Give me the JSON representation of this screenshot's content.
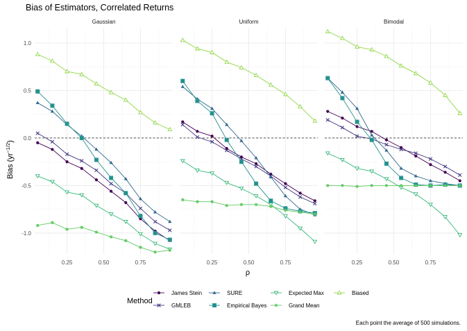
{
  "chart_data": {
    "type": "line",
    "title": "Bias of Estimators, Correlated Returns",
    "xlabel": "ρ",
    "ylabel": "Bias (yr",
    "ylabel_exponent": "−1/2",
    "ylabel_close": ")",
    "xticks": [
      "0.25",
      "0.50",
      "0.75"
    ],
    "yticks": [
      "1.0",
      "0.5",
      "0.0",
      "-0.5",
      "-1.0"
    ],
    "xlim": [
      0.03,
      0.97
    ],
    "ylim": [
      -1.22,
      1.16
    ],
    "reference_line": 0,
    "grid": true,
    "legend": {
      "title": "Method",
      "position": "bottom"
    },
    "caption": "Each point the average of 500 simulations.",
    "x": [
      0.05,
      0.15,
      0.25,
      0.35,
      0.45,
      0.55,
      0.65,
      0.75,
      0.85,
      0.95
    ],
    "series_meta": [
      {
        "name": "James Stein",
        "color": "#440154",
        "shape": "circle"
      },
      {
        "name": "GMLEB",
        "color": "#443a83",
        "shape": "x"
      },
      {
        "name": "SURE",
        "color": "#31688e",
        "shape": "triangle"
      },
      {
        "name": "Empirical Bayes",
        "color": "#21908d",
        "shape": "square"
      },
      {
        "name": "Expected Max",
        "color": "#35b779",
        "shape": "triangle-down"
      },
      {
        "name": "Grand Mean",
        "color": "#5ec962",
        "shape": "asterisk"
      },
      {
        "name": "Biased",
        "color": "#8fd744",
        "shape": "triangle-open"
      }
    ],
    "panels": [
      {
        "name": "Gaussian",
        "series": [
          {
            "name": "James Stein",
            "values": [
              -0.05,
              -0.12,
              -0.25,
              -0.32,
              -0.44,
              -0.56,
              -0.68,
              -0.85,
              -0.98,
              -1.08
            ]
          },
          {
            "name": "GMLEB",
            "values": [
              0.05,
              -0.04,
              -0.17,
              -0.24,
              -0.34,
              -0.48,
              -0.58,
              -0.74,
              -0.88,
              -0.97
            ]
          },
          {
            "name": "SURE",
            "values": [
              0.37,
              0.28,
              0.14,
              0.02,
              -0.12,
              -0.26,
              -0.43,
              -0.64,
              -0.78,
              -0.88
            ]
          },
          {
            "name": "Empirical Bayes",
            "values": [
              0.49,
              0.34,
              0.15,
              0.0,
              -0.23,
              -0.42,
              -0.58,
              -0.82,
              -1.0,
              -1.07
            ]
          },
          {
            "name": "Expected Max",
            "values": [
              -0.4,
              -0.46,
              -0.57,
              -0.6,
              -0.71,
              -0.8,
              -0.88,
              -1.01,
              -1.11,
              -1.17
            ]
          },
          {
            "name": "Grand Mean",
            "values": [
              -0.92,
              -0.89,
              -0.96,
              -0.94,
              -0.99,
              -1.04,
              -1.08,
              -1.15,
              -1.2,
              -1.18
            ]
          },
          {
            "name": "Biased",
            "values": [
              0.88,
              0.81,
              0.7,
              0.67,
              0.57,
              0.48,
              0.4,
              0.27,
              0.16,
              0.09
            ]
          }
        ]
      },
      {
        "name": "Uniform",
        "series": [
          {
            "name": "James Stein",
            "values": [
              0.17,
              0.07,
              0.02,
              -0.11,
              -0.2,
              -0.27,
              -0.38,
              -0.48,
              -0.58,
              -0.66
            ]
          },
          {
            "name": "GMLEB",
            "values": [
              0.14,
              0.01,
              -0.04,
              -0.13,
              -0.22,
              -0.3,
              -0.4,
              -0.52,
              -0.62,
              -0.69
            ]
          },
          {
            "name": "SURE",
            "values": [
              0.54,
              0.41,
              0.31,
              0.14,
              -0.03,
              -0.21,
              -0.41,
              -0.61,
              -0.75,
              -0.81
            ]
          },
          {
            "name": "Empirical Bayes",
            "values": [
              0.6,
              0.39,
              0.26,
              -0.02,
              -0.25,
              -0.48,
              -0.66,
              -0.74,
              -0.77,
              -0.79
            ]
          },
          {
            "name": "Expected Max",
            "values": [
              -0.24,
              -0.34,
              -0.37,
              -0.47,
              -0.53,
              -0.61,
              -0.7,
              -0.82,
              -0.95,
              -1.09
            ]
          },
          {
            "name": "Grand Mean",
            "values": [
              -0.65,
              -0.67,
              -0.67,
              -0.71,
              -0.7,
              -0.7,
              -0.72,
              -0.76,
              -0.78,
              -0.8
            ]
          },
          {
            "name": "Biased",
            "values": [
              1.03,
              0.94,
              0.9,
              0.8,
              0.74,
              0.66,
              0.56,
              0.46,
              0.33,
              0.18
            ]
          }
        ]
      },
      {
        "name": "Bimodal",
        "series": [
          {
            "name": "James Stein",
            "values": [
              0.28,
              0.21,
              0.12,
              0.07,
              -0.02,
              -0.1,
              -0.19,
              -0.28,
              -0.36,
              -0.45
            ]
          },
          {
            "name": "GMLEB",
            "values": [
              0.19,
              0.11,
              0.02,
              -0.01,
              -0.07,
              -0.12,
              -0.16,
              -0.22,
              -0.3,
              -0.39
            ]
          },
          {
            "name": "SURE",
            "values": [
              0.63,
              0.48,
              0.31,
              0.03,
              -0.13,
              -0.32,
              -0.4,
              -0.45,
              -0.48,
              -0.5
            ]
          },
          {
            "name": "Empirical Bayes",
            "values": [
              0.63,
              0.42,
              0.17,
              -0.02,
              -0.27,
              -0.42,
              -0.49,
              -0.5,
              -0.49,
              -0.5
            ]
          },
          {
            "name": "Expected Max",
            "values": [
              -0.16,
              -0.23,
              -0.32,
              -0.35,
              -0.43,
              -0.52,
              -0.59,
              -0.7,
              -0.83,
              -1.02
            ]
          },
          {
            "name": "Grand Mean",
            "values": [
              -0.5,
              -0.5,
              -0.51,
              -0.5,
              -0.5,
              -0.5,
              -0.5,
              -0.5,
              -0.5,
              -0.5
            ]
          },
          {
            "name": "Biased",
            "values": [
              1.12,
              1.05,
              0.96,
              0.93,
              0.86,
              0.76,
              0.68,
              0.58,
              0.45,
              0.26
            ]
          }
        ]
      }
    ]
  }
}
